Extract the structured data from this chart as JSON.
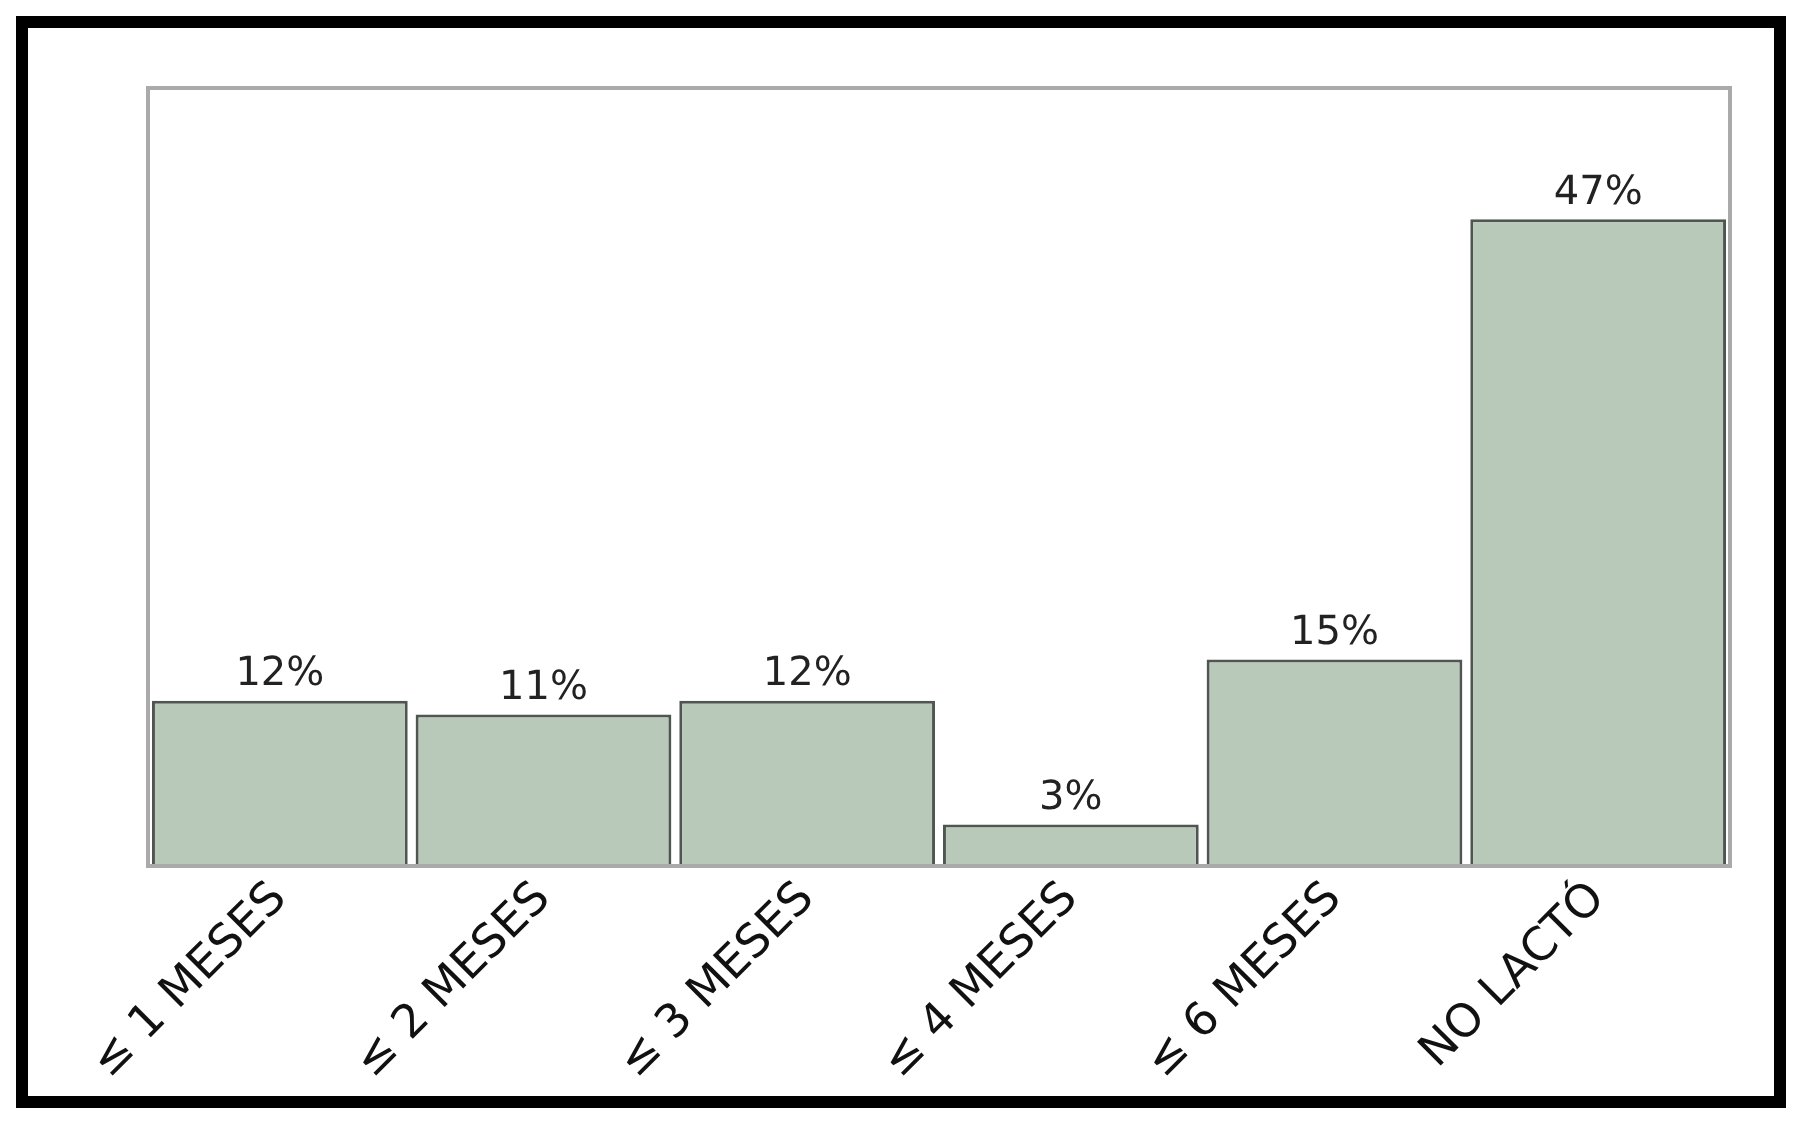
{
  "chart_data": {
    "type": "bar",
    "categories": [
      "≤ 1 MESES",
      "≤ 2 MESES",
      "≤ 3 MESES",
      "≤ 4 MESES",
      "≤ 6 MESES",
      "NO LACTÓ"
    ],
    "values": [
      12,
      11,
      12,
      3,
      15,
      47
    ],
    "value_labels": [
      "12%",
      "11%",
      "12%",
      "3%",
      "15%",
      "47%"
    ],
    "color": "#b9c9b9",
    "tick_labels": "x",
    "grid": false,
    "legend": false
  }
}
